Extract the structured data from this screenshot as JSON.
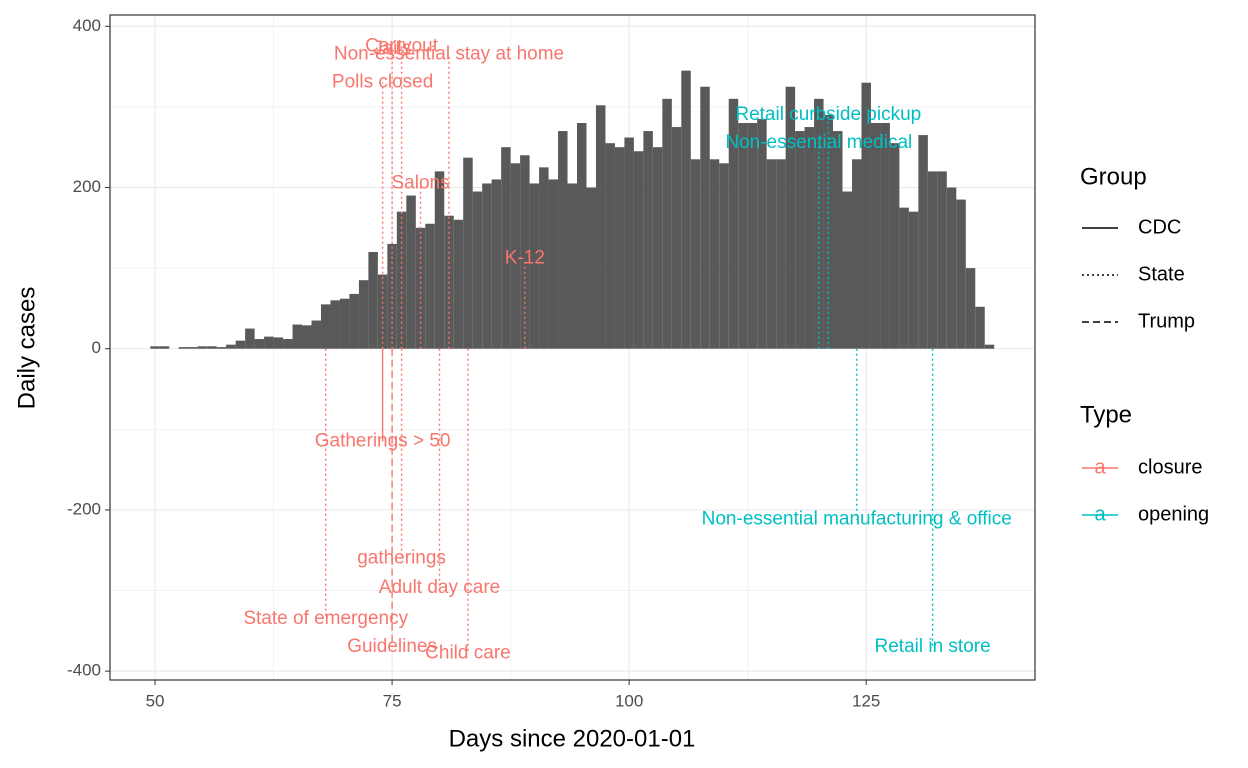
{
  "chart_data": {
    "type": "bar",
    "x_label": "Days since 2020-01-01",
    "y_label": "Daily cases",
    "x": [
      50,
      51,
      52,
      53,
      54,
      55,
      56,
      57,
      58,
      59,
      60,
      61,
      62,
      63,
      64,
      65,
      66,
      67,
      68,
      69,
      70,
      71,
      72,
      73,
      74,
      75,
      76,
      77,
      78,
      79,
      80,
      81,
      82,
      83,
      84,
      85,
      86,
      87,
      88,
      89,
      90,
      91,
      92,
      93,
      94,
      95,
      96,
      97,
      98,
      99,
      100,
      101,
      102,
      103,
      104,
      105,
      106,
      107,
      108,
      109,
      110,
      111,
      112,
      113,
      114,
      115,
      116,
      117,
      118,
      119,
      120,
      121,
      122,
      123,
      124,
      125,
      126,
      127,
      128,
      129,
      130,
      131,
      132,
      133,
      134,
      135,
      136,
      137,
      138
    ],
    "values": [
      3,
      3,
      0,
      2,
      2,
      3,
      3,
      2,
      5,
      10,
      25,
      12,
      15,
      14,
      12,
      30,
      29,
      35,
      55,
      60,
      62,
      68,
      85,
      120,
      92,
      130,
      170,
      190,
      150,
      155,
      220,
      165,
      160,
      237,
      195,
      205,
      210,
      250,
      230,
      240,
      205,
      225,
      210,
      270,
      205,
      280,
      200,
      302,
      255,
      250,
      262,
      245,
      270,
      250,
      310,
      275,
      345,
      235,
      325,
      235,
      230,
      310,
      280,
      280,
      285,
      235,
      235,
      325,
      270,
      275,
      310,
      290,
      270,
      195,
      235,
      330,
      280,
      280,
      255,
      175,
      170,
      265,
      220,
      220,
      200,
      185,
      100,
      52,
      5
    ],
    "color": "#595959",
    "xlim": [
      45.25,
      142.8
    ],
    "ylim": [
      -411,
      414
    ],
    "xticks": [
      50,
      75,
      100,
      125
    ],
    "yticks": [
      -400,
      -200,
      0,
      200,
      400
    ],
    "grid": true,
    "annotations": [
      {
        "label": "Jails",
        "x": 75,
        "y": 372,
        "type": "closure",
        "group": "State"
      },
      {
        "label": "Carryout",
        "x": 76,
        "y": 375,
        "type": "closure",
        "group": "State"
      },
      {
        "label": "Non-essential stay at home",
        "x": 81,
        "y": 365,
        "type": "closure",
        "group": "State"
      },
      {
        "label": "Polls closed",
        "x": 74,
        "y": 330,
        "type": "closure",
        "group": "State"
      },
      {
        "label": "Salons",
        "x": 78,
        "y": 205,
        "type": "closure",
        "group": "State"
      },
      {
        "label": "K-12",
        "x": 89,
        "y": 112,
        "type": "closure",
        "group": "State"
      },
      {
        "label": "Retail  curbside pickup",
        "x": 121,
        "y": 290,
        "type": "opening",
        "group": "State"
      },
      {
        "label": "Non-essential medical",
        "x": 120,
        "y": 255,
        "type": "opening",
        "group": "State"
      },
      {
        "label": "Gatherings > 50",
        "x": 74,
        "y": -115,
        "type": "closure",
        "group": "CDC"
      },
      {
        "label": "gatherings",
        "x": 76,
        "y": -260,
        "type": "closure",
        "group": "State"
      },
      {
        "label": "Adult day care",
        "x": 80,
        "y": -297,
        "type": "closure",
        "group": "State"
      },
      {
        "label": "State of emergency",
        "x": 68,
        "y": -335,
        "type": "closure",
        "group": "State"
      },
      {
        "label": "Guidelines",
        "x": 75,
        "y": -370,
        "type": "closure",
        "group": "Trump"
      },
      {
        "label": "Child care",
        "x": 83,
        "y": -378,
        "type": "closure",
        "group": "State"
      },
      {
        "label": "Non-essential manufacturing & office",
        "x": 124,
        "y": -212,
        "type": "opening",
        "group": "State"
      },
      {
        "label": "Retail in store",
        "x": 132,
        "y": -370,
        "type": "opening",
        "group": "State"
      }
    ],
    "group_legend": {
      "title": "Group",
      "items": [
        {
          "name": "CDC",
          "dash": "none"
        },
        {
          "name": "State",
          "dash": "2,3"
        },
        {
          "name": "Trump",
          "dash": "7,4"
        }
      ]
    },
    "type_legend": {
      "title": "Type",
      "key": "a",
      "items": [
        {
          "name": "closure",
          "color": "#F8766D"
        },
        {
          "name": "opening",
          "color": "#00BFC4"
        }
      ]
    }
  }
}
